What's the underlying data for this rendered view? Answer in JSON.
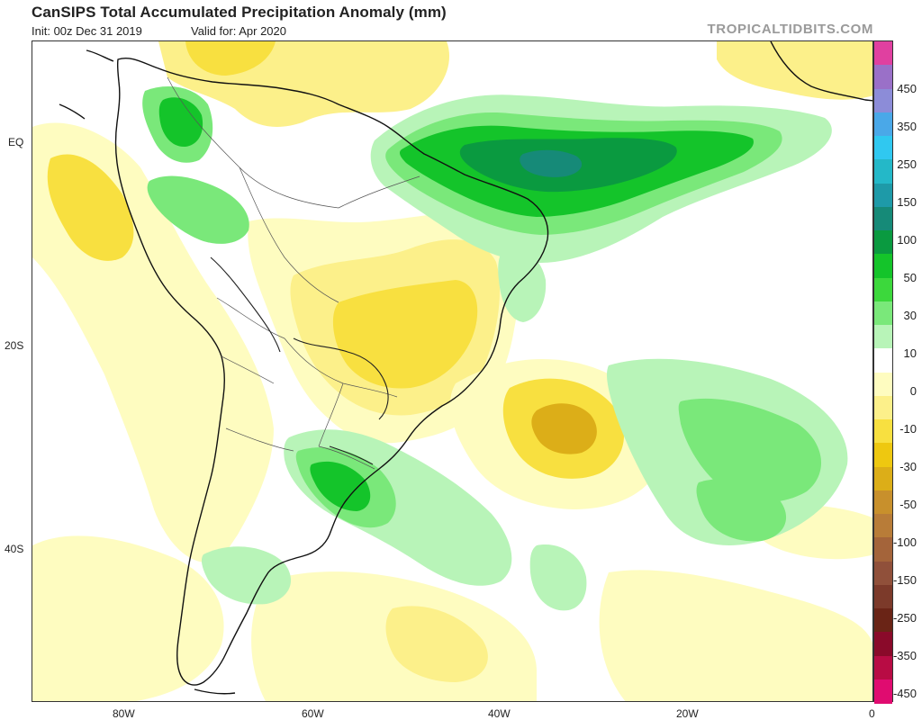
{
  "header": {
    "title": "CanSIPS Total Accumulated Precipitation Anomaly (mm)",
    "init_text": "Init: 00z Dec 31 2019",
    "valid_text": "Valid for: Apr 2020",
    "brand": "TROPICALTIDBITS.COM"
  },
  "axes": {
    "lat_labels": [
      "EQ",
      "20S",
      "40S"
    ],
    "lon_labels": [
      "80W",
      "60W",
      "40W",
      "20W",
      "0"
    ]
  },
  "legend": {
    "labels": [
      "450",
      "350",
      "250",
      "150",
      "100",
      "50",
      "30",
      "10",
      "0",
      "-10",
      "-30",
      "-50",
      "-100",
      "-150",
      "-250",
      "-350",
      "-450"
    ],
    "colors": [
      "#e040a0",
      "#9a70c8",
      "#8c8cd8",
      "#4aa8e8",
      "#30c8f0",
      "#24b8c8",
      "#1e9aa8",
      "#168a78",
      "#0a9a40",
      "#14c42a",
      "#3cd83c",
      "#7ae87a",
      "#b8f4b8",
      "#ffffff",
      "#fefcc0",
      "#fcf08a",
      "#f8e040",
      "#eec810",
      "#dcae18",
      "#c8902c",
      "#b87c38",
      "#a4643a",
      "#90503a",
      "#7c3a2a",
      "#6a2416",
      "#8a0a2a",
      "#b80c44",
      "#e00c70"
    ],
    "neutral_index": 13
  },
  "colors": {
    "wet_weak": "#b8f4b8",
    "wet_mid": "#7ae87a",
    "wet_strong": "#14c42a",
    "wet_core": "#0a9a40",
    "wet_peak": "#168a78",
    "dry_weak": "#fefcc0",
    "dry_mid": "#fcf08a",
    "dry_strong": "#f8e040",
    "dry_peak": "#dcae18",
    "coast": "#111111",
    "border": "#555555"
  }
}
